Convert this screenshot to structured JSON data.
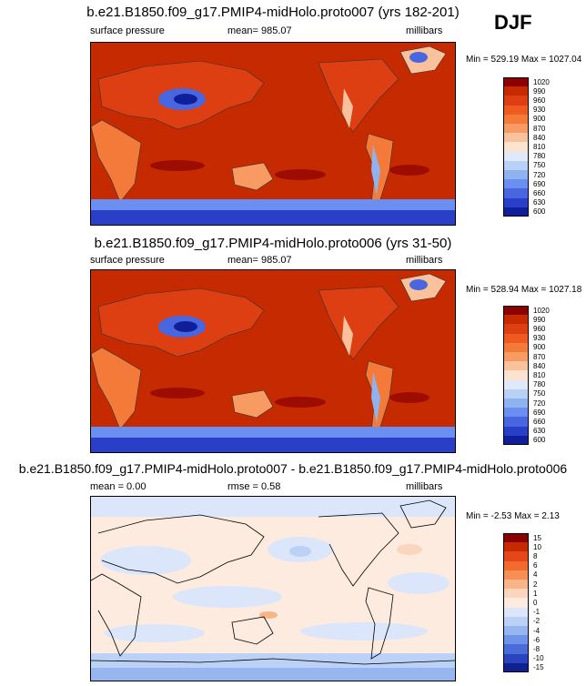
{
  "season": "DJF",
  "chart_data": [
    {
      "type": "heatmap",
      "title": "b.e21.B1850.f09_g17.PMIP4-midHolo.proto007 (yrs 182-201)",
      "variable": "surface pressure",
      "mean_text": "mean= 985.07",
      "units": "millibars",
      "minmax_text": "Min = 529.19 Max = 1027.04",
      "min": 529.19,
      "max": 1027.04,
      "levels": [
        "1020",
        "990",
        "960",
        "930",
        "900",
        "870",
        "840",
        "810",
        "780",
        "750",
        "720",
        "690",
        "660",
        "630",
        "600"
      ],
      "colors": [
        "#8b0000",
        "#c52a00",
        "#dd3f12",
        "#ef5a1e",
        "#f47a3a",
        "#f79b62",
        "#f9c29d",
        "#fbe3cf",
        "#dfe9fb",
        "#b9d0f7",
        "#8fb2f0",
        "#6a8ff0",
        "#4866e0",
        "#2a3fc8",
        "#0f1f99"
      ]
    },
    {
      "type": "heatmap",
      "title": "b.e21.B1850.f09_g17.PMIP4-midHolo.proto006 (yrs 31-50)",
      "variable": "surface pressure",
      "mean_text": "mean= 985.07",
      "units": "millibars",
      "minmax_text": "Min = 528.94 Max = 1027.18",
      "min": 528.94,
      "max": 1027.18,
      "levels": [
        "1020",
        "990",
        "960",
        "930",
        "900",
        "870",
        "840",
        "810",
        "780",
        "750",
        "720",
        "690",
        "660",
        "630",
        "600"
      ],
      "colors": [
        "#8b0000",
        "#c52a00",
        "#dd3f12",
        "#ef5a1e",
        "#f47a3a",
        "#f79b62",
        "#f9c29d",
        "#fbe3cf",
        "#dfe9fb",
        "#b9d0f7",
        "#8fb2f0",
        "#6a8ff0",
        "#4866e0",
        "#2a3fc8",
        "#0f1f99"
      ]
    },
    {
      "type": "heatmap",
      "title": "b.e21.B1850.f09_g17.PMIP4-midHolo.proto007 - b.e21.B1850.f09_g17.PMIP4-midHolo.proto006",
      "mean_text": "mean =   0.00",
      "rmse_text": "rmse =   0.58",
      "units": "millibars",
      "minmax_text": "Min =  -2.53 Max =   2.13",
      "min": -2.53,
      "max": 2.13,
      "mean": 0.0,
      "rmse": 0.58,
      "levels": [
        "15",
        "10",
        "8",
        "6",
        "4",
        "2",
        "1",
        "0",
        "-1",
        "-2",
        "-4",
        "-6",
        "-8",
        "-10",
        "-15"
      ],
      "colors": [
        "#8b0000",
        "#c52a00",
        "#e5461a",
        "#f36a2f",
        "#f78f55",
        "#f9b487",
        "#fbd5bd",
        "#fdebe0",
        "#dbe6fa",
        "#bcd1f6",
        "#97b6f0",
        "#6f93e8",
        "#4a6cd8",
        "#2b43bf",
        "#10208f"
      ]
    }
  ]
}
